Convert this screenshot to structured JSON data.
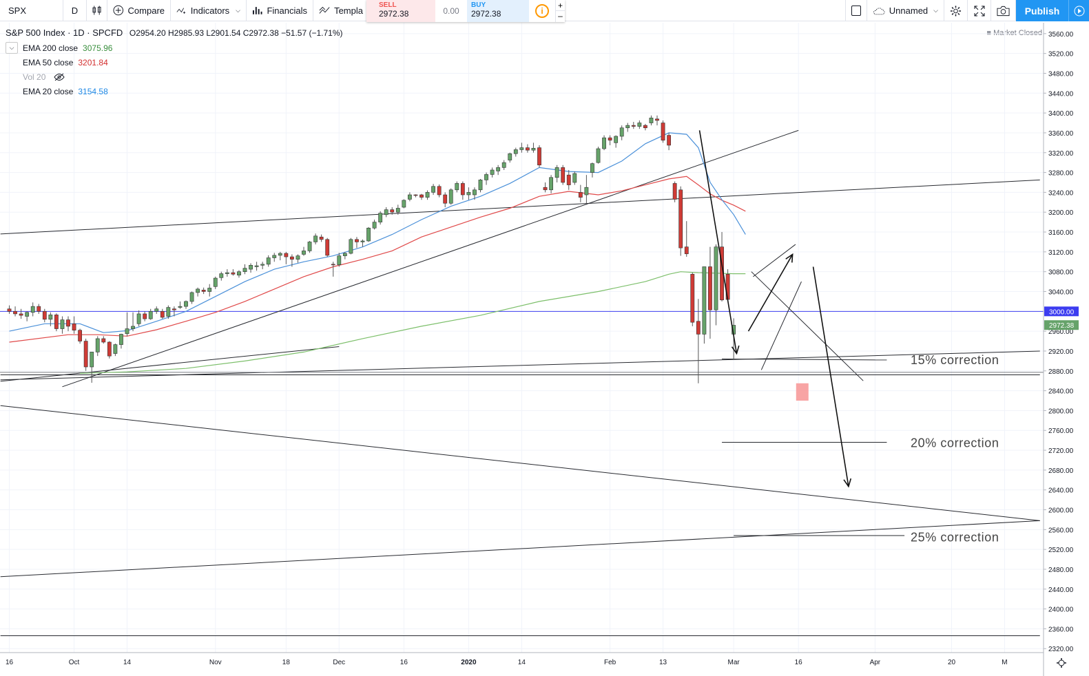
{
  "toolbar": {
    "symbol": "SPX",
    "interval": "D",
    "compare": "Compare",
    "indicators": "Indicators",
    "financials": "Financials",
    "templates": "Templa",
    "layout_name": "Unnamed",
    "publish": "Publish"
  },
  "trade": {
    "sell_label": "SELL",
    "sell_value": "2972.38",
    "spread": "0.00",
    "buy_label": "BUY",
    "buy_value": "2972.38",
    "plus": "+",
    "minus": "–"
  },
  "legend": {
    "title": "S&P 500 Index · 1D · SPCFD",
    "ohlc": "O2954.20  H2985.93  L2901.54  C2972.38  −51.57 (−1.71%)",
    "indicators": [
      {
        "name": "EMA 200 close",
        "value": "3075.96",
        "color": "#388e3c"
      },
      {
        "name": "EMA 50 close",
        "value": "3201.84",
        "color": "#d32f2f"
      },
      {
        "name": "Vol 20",
        "value": ""
      },
      {
        "name": "EMA 20 close",
        "value": "3154.58",
        "color": "#1e88e5"
      }
    ],
    "market_status": "Market Closed"
  },
  "colors": {
    "up": "#66a36a",
    "down": "#cf3b36",
    "ema20": "#4a90d9",
    "ema50": "#e04848",
    "ema200": "#7cbf6a",
    "hline": "#3c3cf0"
  },
  "chart_data": {
    "type": "candlestick",
    "symbol": "S&P 500 Index",
    "y_axis_ticks": [
      "3560.00",
      "3520.00",
      "3480.00",
      "3440.00",
      "3400.00",
      "3360.00",
      "3320.00",
      "3280.00",
      "3240.00",
      "3200.00",
      "3160.00",
      "3120.00",
      "3080.00",
      "3040.00",
      "3000.00",
      "2960.00",
      "2920.00",
      "2880.00",
      "2840.00",
      "2800.00",
      "2760.00",
      "2720.00",
      "2680.00",
      "2640.00",
      "2600.00",
      "2560.00",
      "2520.00",
      "2480.00",
      "2440.00",
      "2400.00",
      "2360.00",
      "2320.00"
    ],
    "y_labels_show": [
      3560,
      3520,
      3480,
      3440,
      3400,
      3360,
      3320,
      3280,
      3240,
      3200,
      3160,
      3120,
      3080,
      3040,
      2960,
      2920,
      2880,
      2840,
      2800,
      2760,
      2720,
      2680,
      2640,
      2600,
      2560,
      2520,
      2480,
      2440,
      2400,
      2360,
      2320
    ],
    "ylim": [
      2312,
      3582
    ],
    "x_axis_labels": [
      {
        "label": "16",
        "i": 0
      },
      {
        "label": "Oct",
        "i": 11
      },
      {
        "label": "14",
        "i": 20
      },
      {
        "label": "Nov",
        "i": 35
      },
      {
        "label": "18",
        "i": 47
      },
      {
        "label": "Dec",
        "i": 56
      },
      {
        "label": "16",
        "i": 67
      },
      {
        "label": "2020",
        "i": 78
      },
      {
        "label": "14",
        "i": 87
      },
      {
        "label": "Feb",
        "i": 102
      },
      {
        "label": "13",
        "i": 111
      },
      {
        "label": "Mar",
        "i": 123
      },
      {
        "label": "16",
        "i": 134
      },
      {
        "label": "Apr",
        "i": 147
      },
      {
        "label": "20",
        "i": 160
      },
      {
        "label": "M",
        "i": 169
      }
    ],
    "price_labels": [
      {
        "value": 3000.0,
        "text": "3000.00",
        "color": "#3c3cf0"
      },
      {
        "value": 2972.38,
        "text": "2972.38",
        "color": "#66a36a"
      }
    ],
    "horizontal_line": 3000,
    "candles": [
      [
        3005,
        3012,
        2995,
        3000
      ],
      [
        3000,
        3010,
        2990,
        2995
      ],
      [
        2995,
        3005,
        2985,
        2992
      ],
      [
        2990,
        3000,
        2980,
        2998
      ],
      [
        2998,
        3018,
        2990,
        3010
      ],
      [
        3010,
        3015,
        2995,
        3000
      ],
      [
        3000,
        3005,
        2978,
        2984
      ],
      [
        2984,
        2998,
        2970,
        2993
      ],
      [
        2993,
        2996,
        2960,
        2965
      ],
      [
        2965,
        2990,
        2955,
        2983
      ],
      [
        2983,
        2990,
        2960,
        2970
      ],
      [
        2975,
        2990,
        2955,
        2962
      ],
      [
        2962,
        2965,
        2935,
        2940
      ],
      [
        2940,
        2945,
        2880,
        2888
      ],
      [
        2888,
        2918,
        2856,
        2918
      ],
      [
        2918,
        2950,
        2910,
        2945
      ],
      [
        2945,
        2950,
        2935,
        2938
      ],
      [
        2938,
        2940,
        2905,
        2910
      ],
      [
        2915,
        2935,
        2910,
        2933
      ],
      [
        2933,
        2955,
        2925,
        2954
      ],
      [
        2955,
        2998,
        2950,
        2965
      ],
      [
        2965,
        2998,
        2960,
        2970
      ],
      [
        2975,
        3002,
        2970,
        2995
      ],
      [
        2995,
        3000,
        2980,
        2985
      ],
      [
        2985,
        3005,
        2983,
        3000
      ],
      [
        3000,
        3010,
        2995,
        3005
      ],
      [
        3000,
        3005,
        2985,
        2988
      ],
      [
        2990,
        3012,
        2985,
        3008
      ],
      [
        3005,
        3010,
        2990,
        3003
      ],
      [
        3008,
        3020,
        3005,
        3010
      ],
      [
        3010,
        3022,
        3005,
        3020
      ],
      [
        3020,
        3040,
        3015,
        3038
      ],
      [
        3038,
        3048,
        3030,
        3045
      ],
      [
        3043,
        3048,
        3035,
        3040
      ],
      [
        3040,
        3055,
        3030,
        3047
      ],
      [
        3050,
        3070,
        3045,
        3067
      ],
      [
        3068,
        3080,
        3062,
        3076
      ],
      [
        3076,
        3085,
        3070,
        3078
      ],
      [
        3078,
        3085,
        3072,
        3075
      ],
      [
        3073,
        3083,
        3068,
        3080
      ],
      [
        3080,
        3095,
        3075,
        3087
      ],
      [
        3085,
        3097,
        3078,
        3093
      ],
      [
        3090,
        3100,
        3082,
        3092
      ],
      [
        3093,
        3100,
        3085,
        3095
      ],
      [
        3095,
        3113,
        3090,
        3108
      ],
      [
        3108,
        3118,
        3100,
        3113
      ],
      [
        3113,
        3120,
        3103,
        3117
      ],
      [
        3117,
        3120,
        3095,
        3110
      ],
      [
        3110,
        3115,
        3090,
        3105
      ],
      [
        3105,
        3115,
        3098,
        3112
      ],
      [
        3115,
        3130,
        3112,
        3122
      ],
      [
        3122,
        3142,
        3118,
        3140
      ],
      [
        3140,
        3157,
        3135,
        3152
      ],
      [
        3150,
        3155,
        3140,
        3145
      ],
      [
        3145,
        3148,
        3110,
        3113
      ],
      [
        3095,
        3100,
        3070,
        3094
      ],
      [
        3094,
        3118,
        3090,
        3112
      ],
      [
        3112,
        3120,
        3105,
        3117
      ],
      [
        3117,
        3148,
        3115,
        3145
      ],
      [
        3145,
        3150,
        3128,
        3140
      ],
      [
        3140,
        3145,
        3130,
        3142
      ],
      [
        3142,
        3170,
        3140,
        3168
      ],
      [
        3168,
        3185,
        3165,
        3180
      ],
      [
        3180,
        3202,
        3175,
        3198
      ],
      [
        3195,
        3210,
        3190,
        3205
      ],
      [
        3205,
        3210,
        3195,
        3200
      ],
      [
        3200,
        3215,
        3195,
        3208
      ],
      [
        3210,
        3226,
        3208,
        3224
      ],
      [
        3226,
        3240,
        3222,
        3235
      ],
      [
        3235,
        3236,
        3230,
        3234
      ],
      [
        3235,
        3237,
        3225,
        3230
      ],
      [
        3230,
        3244,
        3225,
        3240
      ],
      [
        3240,
        3257,
        3235,
        3252
      ],
      [
        3252,
        3256,
        3230,
        3235
      ],
      [
        3235,
        3240,
        3210,
        3218
      ],
      [
        3218,
        3248,
        3215,
        3245
      ],
      [
        3245,
        3262,
        3240,
        3258
      ],
      [
        3258,
        3262,
        3225,
        3235
      ],
      [
        3235,
        3250,
        3225,
        3240
      ],
      [
        3235,
        3250,
        3225,
        3245
      ],
      [
        3245,
        3267,
        3240,
        3265
      ],
      [
        3265,
        3280,
        3255,
        3276
      ],
      [
        3276,
        3290,
        3270,
        3285
      ],
      [
        3283,
        3295,
        3275,
        3290
      ],
      [
        3290,
        3305,
        3285,
        3300
      ],
      [
        3305,
        3320,
        3300,
        3318
      ],
      [
        3318,
        3330,
        3312,
        3326
      ],
      [
        3326,
        3340,
        3320,
        3330
      ],
      [
        3330,
        3337,
        3320,
        3325
      ],
      [
        3325,
        3340,
        3320,
        3329
      ],
      [
        3330,
        3335,
        3290,
        3295
      ],
      [
        3250,
        3260,
        3240,
        3245
      ],
      [
        3245,
        3275,
        3238,
        3270
      ],
      [
        3270,
        3295,
        3260,
        3290
      ],
      [
        3290,
        3295,
        3255,
        3260
      ],
      [
        3275,
        3285,
        3245,
        3255
      ],
      [
        3260,
        3282,
        3255,
        3278
      ],
      [
        3240,
        3255,
        3220,
        3230
      ],
      [
        3235,
        3275,
        3215,
        3250
      ],
      [
        3280,
        3300,
        3270,
        3298
      ],
      [
        3300,
        3332,
        3298,
        3328
      ],
      [
        3328,
        3355,
        3325,
        3350
      ],
      [
        3350,
        3355,
        3335,
        3345
      ],
      [
        3340,
        3355,
        3330,
        3353
      ],
      [
        3353,
        3375,
        3345,
        3370
      ],
      [
        3370,
        3380,
        3362,
        3375
      ],
      [
        3375,
        3382,
        3368,
        3373
      ],
      [
        3373,
        3385,
        3368,
        3380
      ],
      [
        3375,
        3378,
        3365,
        3370
      ],
      [
        3380,
        3395,
        3375,
        3390
      ],
      [
        3388,
        3395,
        3375,
        3385
      ],
      [
        3380,
        3385,
        3340,
        3345
      ],
      [
        3355,
        3360,
        3325,
        3335
      ],
      [
        3258,
        3262,
        3220,
        3226
      ],
      [
        3245,
        3252,
        3112,
        3128
      ],
      [
        3130,
        3182,
        3110,
        3116
      ],
      [
        3075,
        3078,
        2970,
        2978
      ],
      [
        2980,
        3025,
        2855,
        2954
      ],
      [
        2954,
        3090,
        2935,
        3090
      ],
      [
        3090,
        3130,
        2945,
        3003
      ],
      [
        3003,
        3135,
        2972,
        3130
      ],
      [
        3130,
        3160,
        3020,
        3023
      ],
      [
        3075,
        3085,
        3025,
        3024
      ],
      [
        2954,
        2986,
        2902,
        2972
      ]
    ],
    "ema20": [
      [
        0,
        2960
      ],
      [
        6,
        2975
      ],
      [
        12,
        2975
      ],
      [
        16,
        2957
      ],
      [
        20,
        2961
      ],
      [
        25,
        2980
      ],
      [
        30,
        3000
      ],
      [
        35,
        3030
      ],
      [
        40,
        3060
      ],
      [
        45,
        3085
      ],
      [
        50,
        3100
      ],
      [
        55,
        3112
      ],
      [
        60,
        3130
      ],
      [
        65,
        3155
      ],
      [
        70,
        3185
      ],
      [
        75,
        3212
      ],
      [
        80,
        3232
      ],
      [
        85,
        3258
      ],
      [
        90,
        3290
      ],
      [
        95,
        3282
      ],
      [
        100,
        3280
      ],
      [
        104,
        3303
      ],
      [
        108,
        3338
      ],
      [
        112,
        3360
      ],
      [
        115,
        3357
      ],
      [
        117,
        3330
      ],
      [
        119,
        3260
      ],
      [
        121,
        3225
      ],
      [
        123,
        3195
      ],
      [
        125,
        3155
      ]
    ],
    "ema50": [
      [
        0,
        2938
      ],
      [
        10,
        2953
      ],
      [
        15,
        2953
      ],
      [
        20,
        2950
      ],
      [
        25,
        2963
      ],
      [
        30,
        2980
      ],
      [
        35,
        2998
      ],
      [
        40,
        3020
      ],
      [
        45,
        3045
      ],
      [
        50,
        3070
      ],
      [
        55,
        3090
      ],
      [
        60,
        3105
      ],
      [
        65,
        3122
      ],
      [
        70,
        3150
      ],
      [
        75,
        3170
      ],
      [
        80,
        3190
      ],
      [
        85,
        3208
      ],
      [
        90,
        3232
      ],
      [
        95,
        3242
      ],
      [
        100,
        3235
      ],
      [
        104,
        3243
      ],
      [
        108,
        3255
      ],
      [
        112,
        3267
      ],
      [
        115,
        3272
      ],
      [
        117,
        3255
      ],
      [
        119,
        3237
      ],
      [
        121,
        3224
      ],
      [
        123,
        3214
      ],
      [
        125,
        3202
      ]
    ],
    "ema200": [
      [
        12,
        2875
      ],
      [
        20,
        2878
      ],
      [
        30,
        2885
      ],
      [
        40,
        2900
      ],
      [
        50,
        2918
      ],
      [
        60,
        2945
      ],
      [
        70,
        2970
      ],
      [
        80,
        2992
      ],
      [
        90,
        3020
      ],
      [
        100,
        3040
      ],
      [
        108,
        3060
      ],
      [
        112,
        3075
      ],
      [
        114,
        3080
      ],
      [
        117,
        3078
      ],
      [
        120,
        3077
      ],
      [
        123,
        3076
      ],
      [
        125,
        3076
      ]
    ],
    "annotations": [
      {
        "text": "15% correction",
        "price": 2903,
        "type": "text"
      },
      {
        "text": "20% correction",
        "price": 2736,
        "type": "text"
      },
      {
        "text": "25% correction",
        "price": 2546,
        "type": "text"
      }
    ]
  }
}
